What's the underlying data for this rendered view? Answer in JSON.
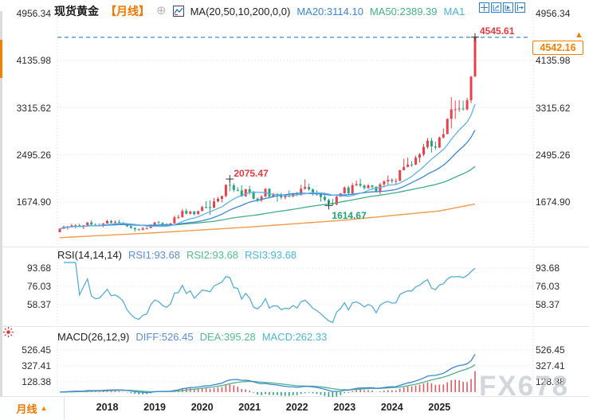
{
  "header": {
    "symbol": "现货黄金",
    "period_tag": "【月线】",
    "ma_settings": "MA(20,50,10,200,0,0)",
    "ma20": "MA20:3114.10",
    "ma50": "MA50:2389.39",
    "ma10": "MA1"
  },
  "rsi_header": {
    "title": "RSI(14,14,14)",
    "v1": "RSI1:93.68",
    "v2": "RSI2:93.68",
    "v3": "RSI3:93.68"
  },
  "macd_header": {
    "title": "MACD(26,12,9)",
    "diff": "DIFF:526.45",
    "dea": "DEA:395.28",
    "macd": "MACD:262.33"
  },
  "annotations": {
    "high": "4545.61",
    "swing_high": "2075.47",
    "swing_low": "1614.67",
    "last_price": "4542.16"
  },
  "bottom": {
    "period": "月线"
  },
  "watermark": "FX678",
  "chart_data": {
    "type": "candlestick",
    "symbol": "现货黄金",
    "interval": "monthly",
    "start_month": "2017-01",
    "price_axis_ticks": [
      4956.34,
      4135.98,
      3315.62,
      2495.26,
      1674.9
    ],
    "x_year_labels": [
      "2018",
      "2019",
      "2020",
      "2021",
      "2022",
      "2023",
      "2024",
      "2025"
    ],
    "last_price": 4542.16,
    "high_annotation": {
      "value": 4545.61,
      "month_index": 105
    },
    "swing_high": {
      "value": 2075.47,
      "month_index": 43
    },
    "swing_low": {
      "value": 1614.67,
      "month_index": 68
    },
    "overlays": {
      "ma_windows": {
        "ma10": 10,
        "ma20": 20,
        "ma50": 50
      },
      "ma20_last": 3114.1,
      "ma50_last": 2389.39,
      "ma200_anchors": [
        [
          0,
          1055
        ],
        [
          24,
          1140
        ],
        [
          48,
          1240
        ],
        [
          72,
          1360
        ],
        [
          96,
          1520
        ],
        [
          105,
          1640
        ]
      ]
    },
    "indicators": {
      "rsi": {
        "period": 14,
        "ticks": [
          93.68,
          76.03,
          58.37
        ],
        "last": [
          93.68,
          93.68,
          93.68
        ]
      },
      "macd": {
        "fast": 12,
        "slow": 26,
        "signal": 9,
        "ticks": [
          526.45,
          327.41,
          128.38
        ],
        "last": {
          "diff": 526.45,
          "dea": 395.28,
          "macd": 262.33
        }
      }
    },
    "colors": {
      "up": "#e8414b",
      "down": "#27a27a",
      "ma10": "#5db3e6",
      "ma20": "#3c86d6",
      "ma50": "#43ae86",
      "ma200": "#f49a48",
      "rsi": "#56aed6",
      "diff": "#3c86d6",
      "dea": "#4db48a",
      "hist_pos": "#dd5a62",
      "hist_neg": "#27a27a",
      "price_line": "#1e7fd0",
      "accent": "#f08200",
      "grid": "#e4e0e0"
    },
    "candles_ohlc": [
      [
        1151,
        1220,
        1146,
        1210
      ],
      [
        1210,
        1264,
        1209,
        1248
      ],
      [
        1248,
        1261,
        1195,
        1249
      ],
      [
        1249,
        1295,
        1240,
        1268
      ],
      [
        1268,
        1290,
        1214,
        1269
      ],
      [
        1269,
        1298,
        1240,
        1241
      ],
      [
        1241,
        1275,
        1204,
        1269
      ],
      [
        1269,
        1325,
        1251,
        1321
      ],
      [
        1321,
        1357,
        1277,
        1280
      ],
      [
        1280,
        1306,
        1260,
        1271
      ],
      [
        1271,
        1299,
        1257,
        1275
      ],
      [
        1275,
        1307,
        1236,
        1303
      ],
      [
        1303,
        1366,
        1302,
        1345
      ],
      [
        1345,
        1362,
        1301,
        1318
      ],
      [
        1318,
        1356,
        1302,
        1325
      ],
      [
        1325,
        1365,
        1301,
        1315
      ],
      [
        1315,
        1326,
        1281,
        1298
      ],
      [
        1298,
        1309,
        1238,
        1253
      ],
      [
        1253,
        1266,
        1211,
        1224
      ],
      [
        1224,
        1235,
        1160,
        1201
      ],
      [
        1201,
        1214,
        1180,
        1192
      ],
      [
        1192,
        1243,
        1181,
        1215
      ],
      [
        1215,
        1237,
        1196,
        1222
      ],
      [
        1222,
        1284,
        1221,
        1282
      ],
      [
        1282,
        1326,
        1276,
        1321
      ],
      [
        1321,
        1347,
        1301,
        1313
      ],
      [
        1313,
        1324,
        1280,
        1292
      ],
      [
        1292,
        1310,
        1266,
        1283
      ],
      [
        1283,
        1309,
        1266,
        1305
      ],
      [
        1305,
        1439,
        1305,
        1409
      ],
      [
        1409,
        1453,
        1381,
        1414
      ],
      [
        1414,
        1555,
        1400,
        1520
      ],
      [
        1520,
        1557,
        1459,
        1472
      ],
      [
        1472,
        1519,
        1459,
        1512
      ],
      [
        1512,
        1516,
        1445,
        1463
      ],
      [
        1463,
        1525,
        1458,
        1517
      ],
      [
        1517,
        1611,
        1517,
        1589
      ],
      [
        1589,
        1689,
        1562,
        1585
      ],
      [
        1585,
        1703,
        1451,
        1577
      ],
      [
        1577,
        1747,
        1568,
        1686
      ],
      [
        1686,
        1765,
        1670,
        1730
      ],
      [
        1730,
        1786,
        1670,
        1780
      ],
      [
        1780,
        1981,
        1757,
        1975
      ],
      [
        1975,
        2075.47,
        1863,
        1967
      ],
      [
        1967,
        2001,
        1848,
        1885
      ],
      [
        1885,
        1933,
        1860,
        1878
      ],
      [
        1878,
        1965,
        1764,
        1776
      ],
      [
        1776,
        1906,
        1764,
        1898
      ],
      [
        1898,
        1959,
        1803,
        1847
      ],
      [
        1847,
        1871,
        1717,
        1734
      ],
      [
        1734,
        1755,
        1677,
        1707
      ],
      [
        1707,
        1798,
        1677,
        1769
      ],
      [
        1769,
        1912,
        1765,
        1906
      ],
      [
        1906,
        1916,
        1750,
        1770
      ],
      [
        1770,
        1834,
        1750,
        1814
      ],
      [
        1814,
        1832,
        1682,
        1813
      ],
      [
        1813,
        1834,
        1721,
        1756
      ],
      [
        1756,
        1813,
        1720,
        1783
      ],
      [
        1783,
        1877,
        1759,
        1774
      ],
      [
        1774,
        1830,
        1753,
        1829
      ],
      [
        1829,
        1853,
        1780,
        1797
      ],
      [
        1797,
        1974,
        1788,
        1908
      ],
      [
        1908,
        2070,
        1890,
        1937
      ],
      [
        1937,
        1998,
        1872,
        1896
      ],
      [
        1896,
        1910,
        1787,
        1837
      ],
      [
        1837,
        1879,
        1784,
        1807
      ],
      [
        1807,
        1814,
        1681,
        1765
      ],
      [
        1765,
        1808,
        1688,
        1711
      ],
      [
        1711,
        1735,
        1614.67,
        1660
      ],
      [
        1660,
        1730,
        1617,
        1633
      ],
      [
        1633,
        1787,
        1616,
        1768
      ],
      [
        1768,
        1833,
        1765,
        1824
      ],
      [
        1824,
        1949,
        1823,
        1928
      ],
      [
        1928,
        1960,
        1805,
        1826
      ],
      [
        1826,
        2010,
        1809,
        1969
      ],
      [
        1969,
        2049,
        1949,
        1990
      ],
      [
        1990,
        2081,
        1932,
        1962
      ],
      [
        1962,
        1985,
        1893,
        1919
      ],
      [
        1919,
        1988,
        1902,
        1965
      ],
      [
        1965,
        1972,
        1885,
        1940
      ],
      [
        1940,
        1953,
        1847,
        1848
      ],
      [
        1848,
        2009,
        1810,
        1983
      ],
      [
        1983,
        2052,
        1932,
        2036
      ],
      [
        2036,
        2135,
        1973,
        2062
      ],
      [
        2062,
        2088,
        2001,
        2039
      ],
      [
        2039,
        2088,
        1984,
        2044
      ],
      [
        2044,
        2236,
        2039,
        2229
      ],
      [
        2229,
        2431,
        2228,
        2286
      ],
      [
        2286,
        2450,
        2277,
        2327
      ],
      [
        2327,
        2388,
        2287,
        2326
      ],
      [
        2326,
        2484,
        2319,
        2447
      ],
      [
        2447,
        2531,
        2365,
        2503
      ],
      [
        2503,
        2685,
        2472,
        2634
      ],
      [
        2634,
        2790,
        2603,
        2743
      ],
      [
        2743,
        2790,
        2536,
        2643
      ],
      [
        2643,
        2726,
        2583,
        2624
      ],
      [
        2624,
        2817,
        2614,
        2798
      ],
      [
        2798,
        2956,
        2780,
        2857
      ],
      [
        2857,
        3128,
        2857,
        3123
      ],
      [
        3123,
        3500,
        2956,
        3288
      ],
      [
        3288,
        3438,
        3120,
        3289
      ],
      [
        3289,
        3452,
        3245,
        3303
      ],
      [
        3303,
        3439,
        3268,
        3289
      ],
      [
        3289,
        3489,
        3268,
        3447
      ],
      [
        3447,
        3871,
        3396,
        3858
      ],
      [
        3858,
        4545.61,
        3855,
        4542.16
      ]
    ]
  }
}
